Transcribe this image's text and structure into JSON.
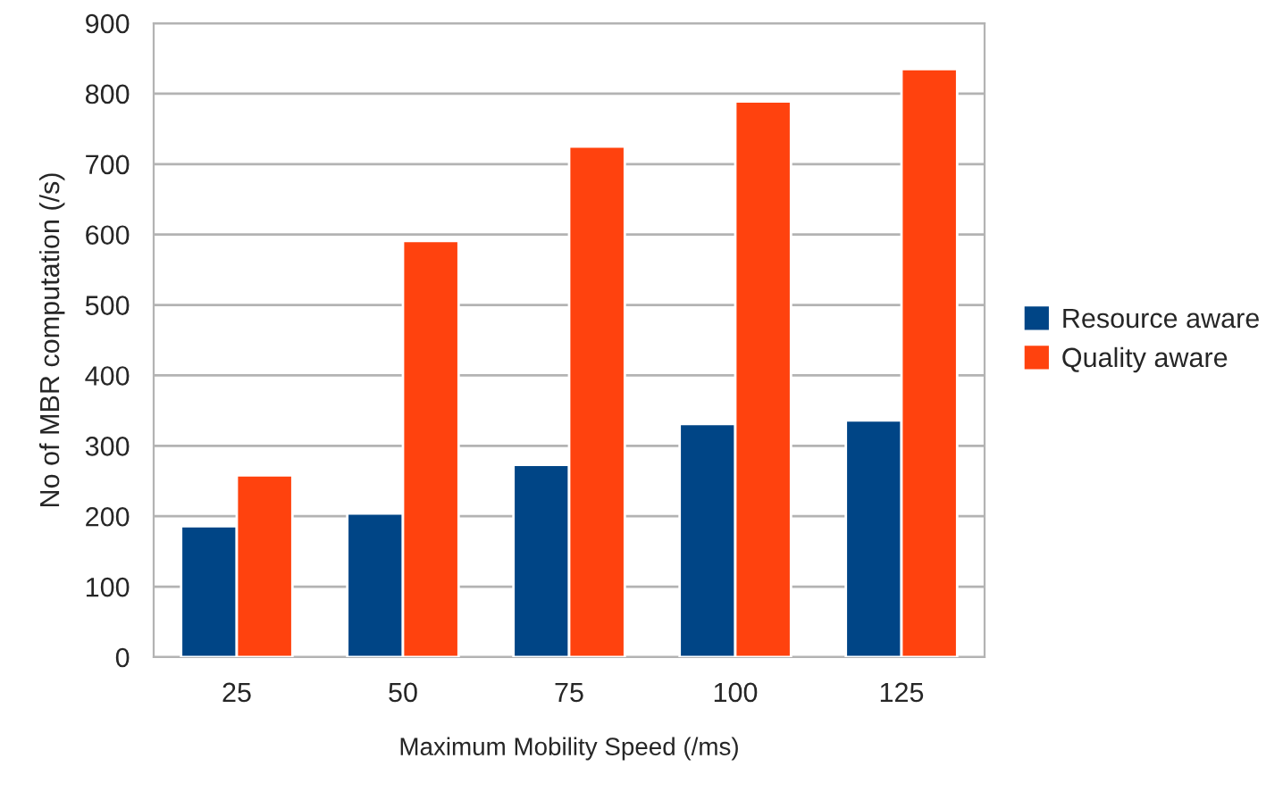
{
  "chart_data": {
    "type": "bar",
    "xlabel": "Maximum Mobility Speed (/ms)",
    "ylabel": "No of MBR computation (/s)",
    "categories": [
      "25",
      "50",
      "75",
      "100",
      "125"
    ],
    "series": [
      {
        "name": "Resource aware",
        "color": "#004586",
        "values": [
          186,
          204,
          273,
          331,
          336
        ]
      },
      {
        "name": "Quality aware",
        "color": "#ff420e",
        "values": [
          258,
          591,
          725,
          789,
          835
        ]
      }
    ],
    "ylim": [
      0,
      900
    ],
    "yticks": [
      0,
      100,
      200,
      300,
      400,
      500,
      600,
      700,
      800,
      900
    ],
    "grid": "y",
    "legend": "right"
  }
}
